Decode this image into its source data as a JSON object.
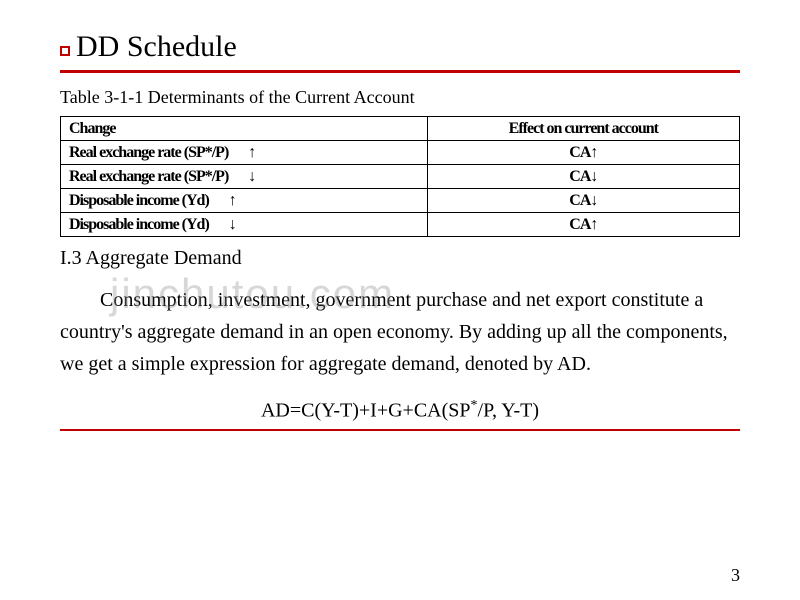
{
  "title": "DD Schedule",
  "table_caption": "Table 3-1-1 Determinants of the Current Account",
  "table": {
    "headers": [
      "Change",
      "Effect on current account"
    ],
    "rows": [
      {
        "label": "Real exchange rate (SP*/P)",
        "arrow": "↑",
        "effect": "CA↑"
      },
      {
        "label": "Real exchange rate (SP*/P)",
        "arrow": "↓",
        "effect": "CA↓"
      },
      {
        "label": "Disposable income (Yd)",
        "arrow": "↑",
        "effect": "CA↓"
      },
      {
        "label": "Disposable income (Yd)",
        "arrow": "↓",
        "effect": "CA↑"
      }
    ]
  },
  "section_heading": "I.3 Aggregate Demand",
  "body": "Consumption, investment, government purchase and net export constitute a country's aggregate demand in an open economy. By adding up all the components, we get a simple expression for aggregate demand, denoted by AD.",
  "equation_pre": "AD=C(Y-T)+I+G+CA(SP",
  "equation_sup": "*",
  "equation_post": "/P, Y-T)",
  "page_number": "3",
  "watermark": "jinchutou.com",
  "colors": {
    "accent": "#c00000",
    "text": "#000000",
    "background": "#ffffff",
    "watermark": "rgba(140,140,140,0.35)"
  },
  "fonts": {
    "title_size": 30,
    "body_size": 20,
    "caption_size": 18,
    "cell_size": 16
  }
}
